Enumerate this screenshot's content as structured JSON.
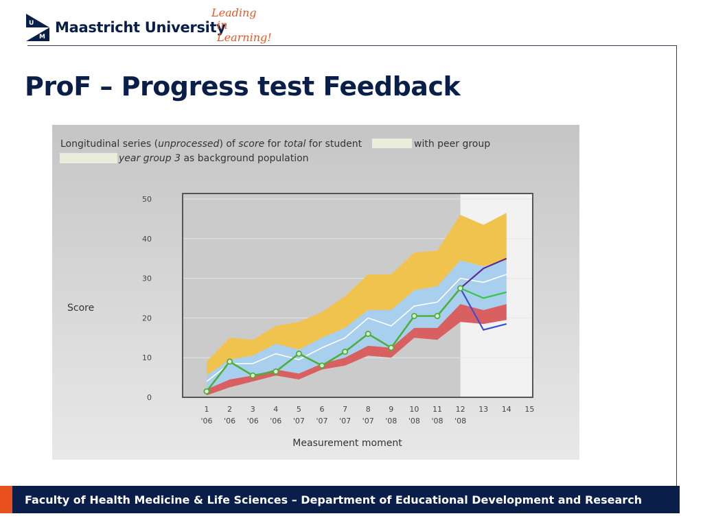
{
  "header": {
    "logo_text": "Maastricht University",
    "tagline_line1": "Leading",
    "tagline_line2": "in Learning!"
  },
  "slide": {
    "title": "ProF – Progress test Feedback"
  },
  "footer": {
    "text": "Faculty of Health Medicine & Life Sciences – Department of Educational Development and Research"
  },
  "colors": {
    "navy": "#0a1e4a",
    "accent_orange": "#e8501e",
    "band_top": "#f0c34e",
    "band_mid": "#a9cfee",
    "band_bottom": "#d96060",
    "student_line": "#4caf3a",
    "median_line": "#ffffff",
    "future_purple": "#5a2a9a",
    "future_blue": "#3a4ed0",
    "future_green": "#35c445",
    "future_gray": "#c8c8c8"
  },
  "chart_data": {
    "type": "line",
    "caption": {
      "line1_a": "Longitudinal series (",
      "line1_b": "unprocessed",
      "line1_c": ") of ",
      "line1_d": "score",
      "line1_e": " for ",
      "line1_f": "total",
      "line1_g": " for student",
      "line1_h": "with peer group",
      "line2_a": "year group 3",
      "line2_b": " as background population"
    },
    "ylabel": "Score",
    "xlabel": "Measurement moment",
    "ylim": [
      0,
      50
    ],
    "yticks": [
      0,
      10,
      20,
      30,
      40,
      50
    ],
    "xlim": [
      0.5,
      15
    ],
    "xticks": [
      {
        "x": 1,
        "num": "1",
        "year": "'06"
      },
      {
        "x": 2,
        "num": "2",
        "year": "'06"
      },
      {
        "x": 3,
        "num": "3",
        "year": "'06"
      },
      {
        "x": 4,
        "num": "4",
        "year": "'06"
      },
      {
        "x": 5,
        "num": "5",
        "year": "'07"
      },
      {
        "x": 6,
        "num": "6",
        "year": "'07"
      },
      {
        "x": 7,
        "num": "7",
        "year": "'07"
      },
      {
        "x": 8,
        "num": "8",
        "year": "'07"
      },
      {
        "x": 9,
        "num": "9",
        "year": "'08"
      },
      {
        "x": 10,
        "num": "10",
        "year": "'08"
      },
      {
        "x": 11,
        "num": "11",
        "year": "'08"
      },
      {
        "x": 12,
        "num": "12",
        "year": "'08"
      },
      {
        "x": 13,
        "num": "13",
        "year": ""
      },
      {
        "x": 14,
        "num": "14",
        "year": ""
      },
      {
        "x": 15,
        "num": "15",
        "year": ""
      }
    ],
    "future_region_start": 12,
    "x": [
      1,
      2,
      3,
      4,
      5,
      6,
      7,
      8,
      9,
      10,
      11,
      12,
      13,
      14
    ],
    "bands": {
      "top_upper": [
        9,
        15,
        14.5,
        18,
        19,
        21.5,
        25.5,
        31,
        31,
        36.5,
        37,
        46,
        43.5,
        46.5
      ],
      "top_lower": [
        5.5,
        9.5,
        10.5,
        13.5,
        12,
        15,
        17.5,
        22,
        22,
        27,
        28,
        34.5,
        33,
        34.5
      ],
      "mid_lower": [
        2,
        4.5,
        5.5,
        7,
        6,
        8.5,
        10,
        13,
        12.5,
        17.5,
        17.5,
        23.5,
        22,
        23.5
      ],
      "bottom_lower": [
        0.5,
        2.5,
        4,
        5.5,
        4.5,
        7,
        8,
        10.5,
        10,
        15,
        14.5,
        19,
        18.5,
        19.5
      ]
    },
    "median": [
      4,
      8.5,
      8.5,
      11,
      9.5,
      12.5,
      15,
      20,
      18,
      23,
      24,
      30,
      29,
      31
    ],
    "student": [
      1.5,
      9,
      5.5,
      6.5,
      11,
      8,
      11.5,
      16,
      12.5,
      20.5,
      20.5,
      27.5
    ],
    "projections": {
      "purple": [
        [
          12,
          27.5
        ],
        [
          13,
          32.5
        ],
        [
          14,
          35
        ]
      ],
      "green": [
        [
          12,
          27.5
        ],
        [
          13,
          25
        ],
        [
          14,
          26.5
        ]
      ],
      "blue": [
        [
          12,
          27.5
        ],
        [
          13,
          17
        ],
        [
          14,
          18.5
        ]
      ]
    }
  }
}
